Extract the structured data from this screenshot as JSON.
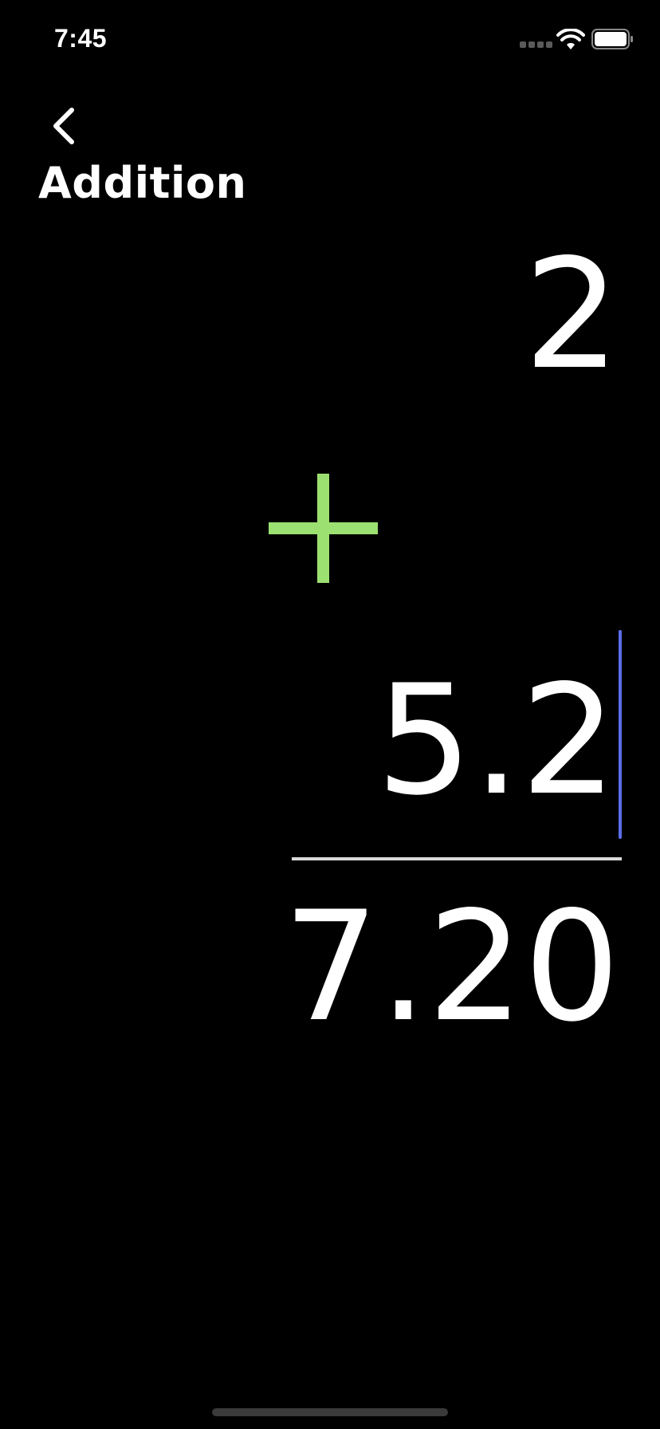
{
  "status_bar": {
    "time": "7:45",
    "wifi_icon": "wifi-icon",
    "battery_icon": "battery-full-icon",
    "signal_icon": "cellular-dots-icon"
  },
  "nav": {
    "back_icon": "chevron-left-icon",
    "title": "Addition"
  },
  "calculation": {
    "operand_1": "2",
    "operator_icon": "plus-icon",
    "operand_2": "5.2",
    "result": "7.20"
  },
  "colors": {
    "background": "#000000",
    "text": "#ffffff",
    "operator": "#9be070",
    "caret": "#5b6ee8",
    "divider": "#d9d9d9"
  }
}
